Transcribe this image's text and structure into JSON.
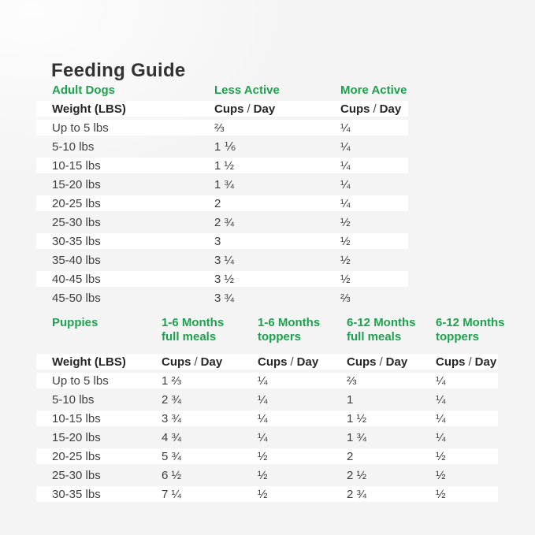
{
  "title": "Feeding Guide",
  "labels": {
    "cups": "Cups",
    "slash": "/",
    "day": "Day",
    "weight_header": "Weight (LBS)"
  },
  "colors": {
    "accent_green": "#1ea14f",
    "background": "#f4f4f4",
    "row_stripe": "#ffffff",
    "heading_text": "#333333",
    "body_text": "#3e3e3e"
  },
  "adult_dogs": {
    "section_label": "Adult Dogs",
    "columns": [
      "Less Active",
      "More Active"
    ],
    "unit_label": "Cups / Day",
    "rows": [
      {
        "weight": "Up to 5 lbs",
        "less": "⅔",
        "more": "¼"
      },
      {
        "weight": "5-10 lbs",
        "less": "1 ⅙",
        "more": "¼"
      },
      {
        "weight": "10-15 lbs",
        "less": "1 ½",
        "more": "¼"
      },
      {
        "weight": "15-20 lbs",
        "less": "1 ¾",
        "more": "¼"
      },
      {
        "weight": "20-25 lbs",
        "less": "2",
        "more": "¼"
      },
      {
        "weight": "25-30 lbs",
        "less": "2 ¾",
        "more": "½"
      },
      {
        "weight": "30-35 lbs",
        "less": "3",
        "more": "½"
      },
      {
        "weight": "35-40 lbs",
        "less": "3 ¼",
        "more": "½"
      },
      {
        "weight": "40-45 lbs",
        "less": "3 ½",
        "more": "½"
      },
      {
        "weight": "45-50 lbs",
        "less": "3 ¾",
        "more": "⅔"
      }
    ]
  },
  "puppies": {
    "section_label": "Puppies",
    "columns": [
      {
        "line1": "1-6 Months",
        "line2": "full meals"
      },
      {
        "line1": "1-6 Months",
        "line2": "toppers"
      },
      {
        "line1": "6-12 Months",
        "line2": "full meals"
      },
      {
        "line1": "6-12 Months",
        "line2": "toppers"
      }
    ],
    "unit_label": "Cups / Day",
    "rows": [
      {
        "weight": "Up to 5 lbs",
        "c1": "1 ⅔",
        "c2": "¼",
        "c3": "⅔",
        "c4": "¼"
      },
      {
        "weight": "5-10 lbs",
        "c1": "2 ¾",
        "c2": "¼",
        "c3": "1",
        "c4": "¼"
      },
      {
        "weight": "10-15 lbs",
        "c1": "3 ¾",
        "c2": "¼",
        "c3": "1 ½",
        "c4": "¼"
      },
      {
        "weight": "15-20 lbs",
        "c1": "4 ¾",
        "c2": "¼",
        "c3": "1 ¾",
        "c4": "¼"
      },
      {
        "weight": "20-25 lbs",
        "c1": "5 ¾",
        "c2": "½",
        "c3": "2",
        "c4": "½"
      },
      {
        "weight": "25-30 lbs",
        "c1": "6 ½",
        "c2": "½",
        "c3": "2 ½",
        "c4": "½"
      },
      {
        "weight": "30-35 lbs",
        "c1": "7 ¼",
        "c2": "½",
        "c3": "2 ¾",
        "c4": "½"
      }
    ]
  }
}
